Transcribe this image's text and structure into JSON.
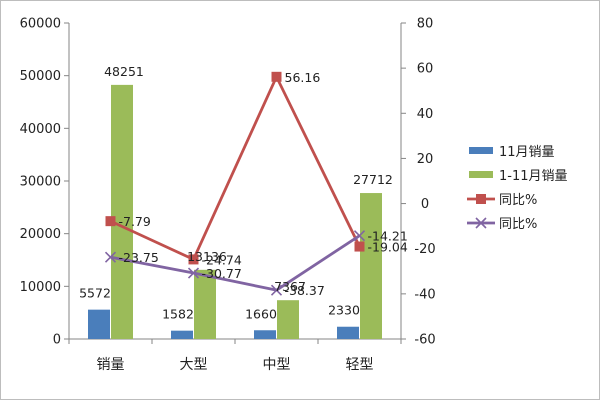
{
  "chart_data": {
    "type": "bar",
    "categories": [
      "销量",
      "大型",
      "中型",
      "轻型"
    ],
    "bar_series": [
      {
        "name": "11月销量",
        "values": [
          5572,
          1582,
          1660,
          2330
        ],
        "color": "#4a7ebb"
      },
      {
        "name": "1-11月销量",
        "values": [
          48251,
          13136,
          7367,
          27712
        ],
        "color": "#9bbb59"
      }
    ],
    "line_series": [
      {
        "name": "同比%",
        "values": [
          -7.79,
          -24.74,
          56.16,
          -19.04
        ],
        "color": "#c0504d",
        "marker": "square"
      },
      {
        "name": "同比%",
        "values": [
          -23.75,
          -30.77,
          -38.37,
          -14.21
        ],
        "color": "#8064a2",
        "marker": "x"
      }
    ],
    "y_left": {
      "range": [
        0,
        60000
      ],
      "ticks": [
        "0",
        "10000",
        "20000",
        "30000",
        "40000",
        "50000",
        "60000"
      ]
    },
    "y_right": {
      "range": [
        -60,
        80
      ],
      "ticks": [
        "-60",
        "-40",
        "-20",
        "0",
        "20",
        "40",
        "60",
        "80"
      ]
    },
    "grid": false,
    "legend_position": "right"
  }
}
